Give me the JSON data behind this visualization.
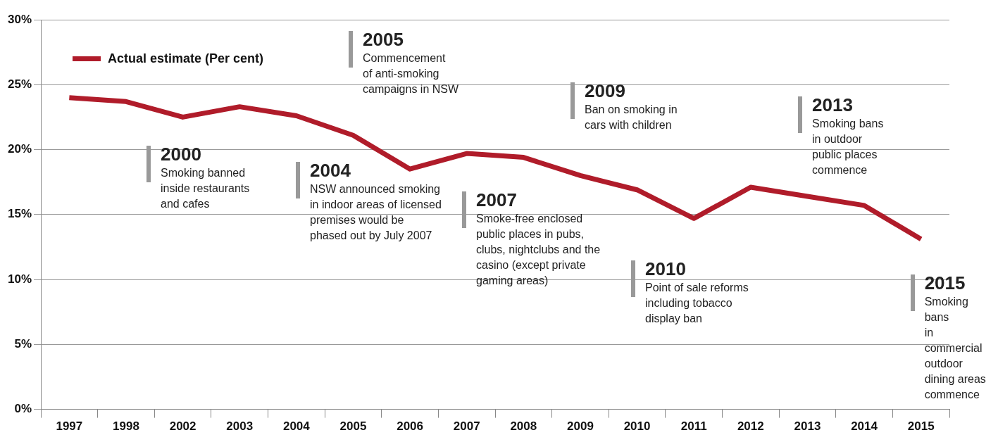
{
  "chart_data": {
    "type": "line",
    "categories": [
      "1997",
      "1998",
      "2002",
      "2003",
      "2004",
      "2005",
      "2006",
      "2007",
      "2008",
      "2009",
      "2010",
      "2011",
      "2012",
      "2013",
      "2014",
      "2015"
    ],
    "series": [
      {
        "name": "Actual estimate (Per cent)",
        "color": "#b01c2a",
        "values": [
          24,
          23.7,
          22.5,
          23.3,
          22.6,
          21.1,
          18.5,
          19.7,
          19.4,
          18,
          16.9,
          14.7,
          17.1,
          16.4,
          15.7,
          13.1
        ]
      }
    ],
    "ylim": [
      0,
      30
    ],
    "yticks": [
      {
        "value": 0,
        "label": "0%"
      },
      {
        "value": 5,
        "label": "5%"
      },
      {
        "value": 10,
        "label": "10%"
      },
      {
        "value": 15,
        "label": "15%"
      },
      {
        "value": 20,
        "label": "20%"
      },
      {
        "value": 25,
        "label": "25%"
      },
      {
        "value": 30,
        "label": "30%"
      }
    ],
    "grid": "y",
    "legend": "top left",
    "marker": "none",
    "line_style": "solid",
    "annotations": [
      "2005\nCommencement\nof anti-smoking\ncampaigns in NSW",
      "2009\nBan on smoking in\ncars with children",
      "2013\nSmoking bans\nin outdoor\npublic places\ncommence",
      "2000\nSmoking banned\ninside restaurants\nand cafes",
      "2004\nNSW announced smoking\nin indoor areas of licensed\npremises would be\nphased out by July 2007",
      "2007\nSmoke-free enclosed\npublic places in pubs,\nclubs, nightclubs and the\ncasino (except private\ngaming areas)",
      "2010\nPoint of sale reforms\nincluding tobacco\ndisplay ban",
      "2015\nSmoking bans\nin commercial\noutdoor\ndining areas\ncommence"
    ]
  }
}
